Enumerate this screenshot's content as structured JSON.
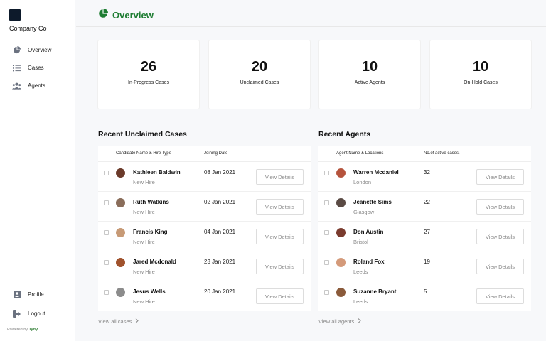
{
  "sidebar": {
    "company": "Company Co",
    "nav": [
      {
        "label": "Overview",
        "icon": "pie-chart-icon"
      },
      {
        "label": "Cases",
        "icon": "list-icon"
      },
      {
        "label": "Agents",
        "icon": "users-icon"
      }
    ],
    "bottom": [
      {
        "label": "Profile",
        "icon": "profile-icon"
      },
      {
        "label": "Logout",
        "icon": "logout-icon"
      }
    ],
    "powered_prefix": "Powered by",
    "powered_brand": "Tydy"
  },
  "header": {
    "title": "Overview",
    "accent": "#1e7d32"
  },
  "stats": [
    {
      "value": "26",
      "label": "In-Progress Cases"
    },
    {
      "value": "20",
      "label": "Unclaimed Cases"
    },
    {
      "value": "10",
      "label": "Active Agents"
    },
    {
      "value": "10",
      "label": "On-Hold Cases"
    }
  ],
  "cases": {
    "title": "Recent Unclaimed Cases",
    "col1": "Candidate Name & Hire Type",
    "col2": "Joining Date",
    "button_label": "View Details",
    "view_all": "View all cases",
    "rows": [
      {
        "name": "Kathleen Baldwin",
        "sub": "New Hire",
        "value": "08 Jan 2021",
        "avatar_color": "#6b3a2a"
      },
      {
        "name": "Ruth Watkins",
        "sub": "New Hire",
        "value": "02 Jan 2021",
        "avatar_color": "#8a6d5a"
      },
      {
        "name": "Francis King",
        "sub": "New Hire",
        "value": "04 Jan 2021",
        "avatar_color": "#c79a76"
      },
      {
        "name": "Jared Mcdonald",
        "sub": "New Hire",
        "value": "23 Jan 2021",
        "avatar_color": "#a0522d"
      },
      {
        "name": "Jesus Wells",
        "sub": "New Hire",
        "value": "20 Jan 2021",
        "avatar_color": "#8c8c8c"
      }
    ]
  },
  "agents": {
    "title": "Recent Agents",
    "col1": "Agent Name & Locations",
    "col2": "No.of active cases.",
    "button_label": "View Details",
    "view_all": "View all agents",
    "rows": [
      {
        "name": "Warren Mcdaniel",
        "sub": "London",
        "value": "32",
        "avatar_color": "#b5533c"
      },
      {
        "name": "Jeanette Sims",
        "sub": "Glasgow",
        "value": "22",
        "avatar_color": "#5a4a44"
      },
      {
        "name": "Don Austin",
        "sub": "Bristol",
        "value": "27",
        "avatar_color": "#7a3b2e"
      },
      {
        "name": "Roland Fox",
        "sub": "Leeds",
        "value": "19",
        "avatar_color": "#d49a7a"
      },
      {
        "name": "Suzanne Bryant",
        "sub": "Leeds",
        "value": "5",
        "avatar_color": "#8a5a3a"
      }
    ]
  }
}
